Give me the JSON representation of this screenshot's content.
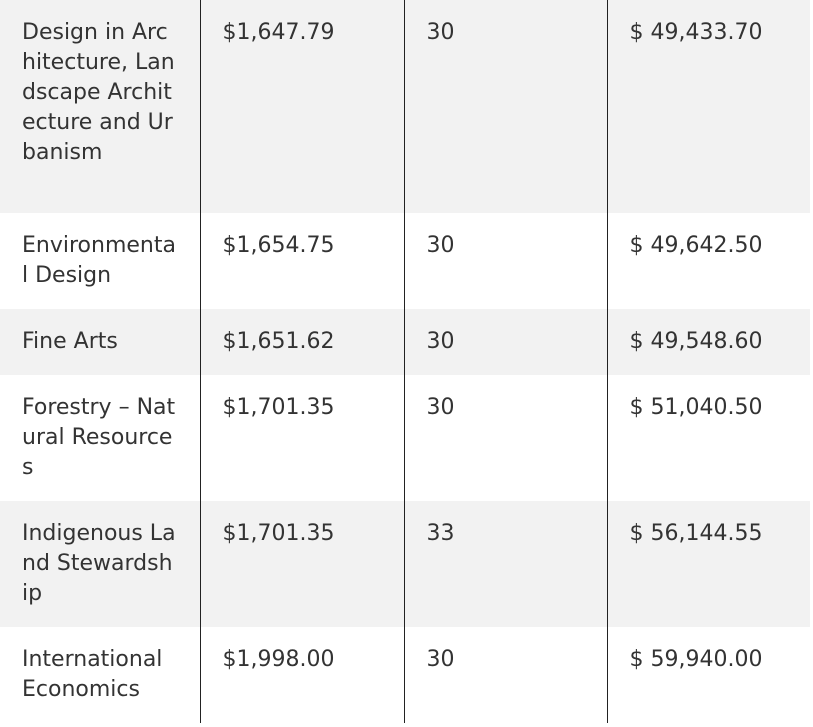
{
  "rows": [
    {
      "program": "Design in Architecture, Landscape Architecture and Urbanism",
      "per_credit": "$1,647.79",
      "credits": "30",
      "total": "$ 49,433.70"
    },
    {
      "program": "Environmental Design",
      "per_credit": "$1,654.75",
      "credits": "30",
      "total": "$ 49,642.50"
    },
    {
      "program": "Fine Arts",
      "per_credit": "$1,651.62",
      "credits": "30",
      "total": "$ 49,548.60"
    },
    {
      "program": "Forestry – Natural Resources",
      "per_credit": "$1,701.35",
      "credits": "30",
      "total": "$ 51,040.50"
    },
    {
      "program": "Indigenous Land Stewardship",
      "per_credit": "$1,701.35",
      "credits": "33",
      "total": "$ 56,144.55"
    },
    {
      "program": "International Economics",
      "per_credit": "$1,998.00",
      "credits": "30",
      "total": "$ 59,940.00"
    }
  ]
}
